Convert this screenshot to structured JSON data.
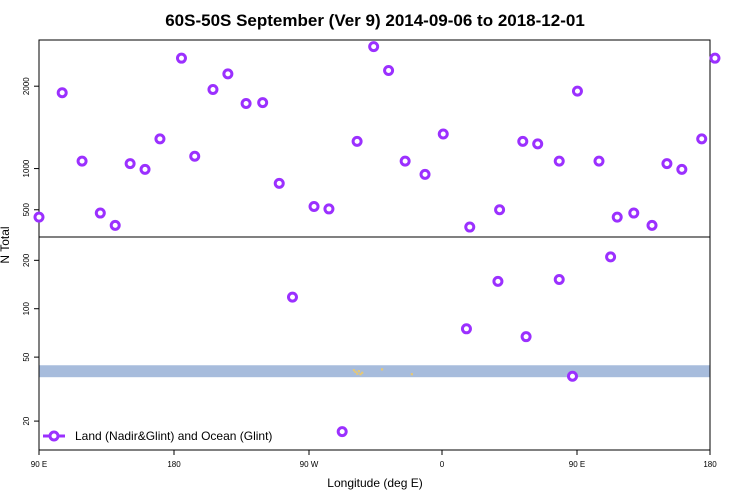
{
  "chart_data": {
    "type": "scatter",
    "title": "60S-50S September (Ver 9)   2014-09-06 to 2018-12-01",
    "xlabel": "Longitude (deg E)",
    "ylabel": "N Total",
    "x_ticks": [
      "90 E",
      "180",
      "90 W",
      "0",
      "90 E",
      "180"
    ],
    "upper_panel": {
      "scale": "linear",
      "ylim": [
        230,
        2500
      ],
      "yticks": [
        500,
        1000,
        2000
      ]
    },
    "lower_panel": {
      "scale": "log",
      "ylim": [
        14,
        260
      ],
      "yticks": [
        20,
        50,
        100,
        200
      ]
    },
    "series": [
      {
        "name": "Land (Nadir&Glint) and Ocean (Glint)",
        "color": "#9b30ff",
        "upper": [
          [
            90,
            410
          ],
          [
            104,
            1920
          ],
          [
            116,
            1090
          ],
          [
            127,
            460
          ],
          [
            136,
            310
          ],
          [
            145,
            1060
          ],
          [
            154,
            990
          ],
          [
            163,
            1360
          ],
          [
            176,
            2340
          ],
          [
            184,
            1150
          ],
          [
            195,
            1960
          ],
          [
            204,
            2150
          ],
          [
            215,
            1790
          ],
          [
            225,
            1800
          ],
          [
            235,
            820
          ],
          [
            256,
            540
          ],
          [
            265,
            510
          ],
          [
            282,
            1330
          ],
          [
            292,
            2480
          ],
          [
            301,
            2190
          ],
          [
            311,
            1090
          ],
          [
            323,
            930
          ],
          [
            334,
            1420
          ],
          [
            350,
            290
          ],
          [
            368,
            500
          ],
          [
            382,
            1330
          ],
          [
            391,
            1300
          ],
          [
            404,
            1090
          ],
          [
            415,
            1940
          ],
          [
            428,
            1090
          ],
          [
            439,
            410
          ],
          [
            449,
            460
          ],
          [
            460,
            310
          ],
          [
            469,
            1060
          ],
          [
            478,
            990
          ],
          [
            490,
            1360
          ],
          [
            498,
            2340
          ]
        ],
        "lower": [
          [
            243,
            118
          ],
          [
            273,
            17.2
          ],
          [
            348,
            75
          ],
          [
            367,
            148
          ],
          [
            384,
            67
          ],
          [
            404,
            152
          ],
          [
            412,
            38
          ],
          [
            435,
            210
          ]
        ]
      }
    ],
    "band": {
      "color": "#a7bcdc",
      "range": [
        37.5,
        44.5
      ]
    },
    "grid": false,
    "legend_position": "bottom-left"
  }
}
